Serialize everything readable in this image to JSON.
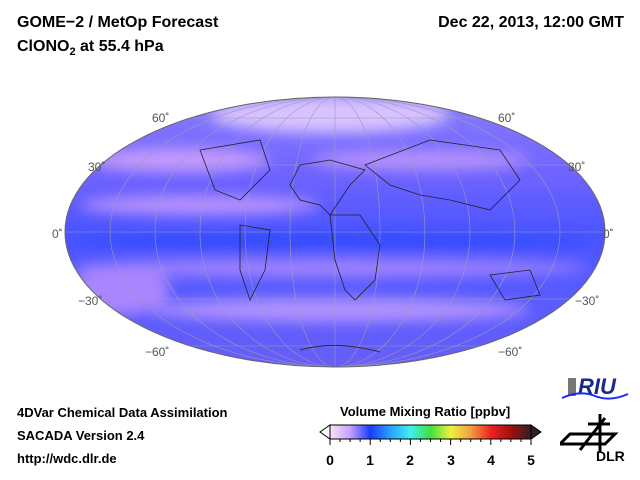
{
  "header": {
    "title": "GOME−2 / MetOp Forecast",
    "species_prefix": "ClONO",
    "species_sub": "2",
    "species_suffix": " at 55.4 hPa",
    "datetime": "Dec 22, 2013, 12:00 GMT"
  },
  "map": {
    "projection": "Mollweide",
    "lat_labels_left": [
      "60˚",
      "30˚",
      "0˚",
      "−30˚",
      "−60˚"
    ],
    "lat_labels_right": [
      "60˚",
      "30˚",
      "0˚",
      "−30˚",
      "−60˚"
    ],
    "colors": {
      "base": "#4a55ff",
      "band": "#e6b3ff",
      "border": "#666666"
    }
  },
  "footer": {
    "line1": "4DVar Chemical Data Assimilation",
    "line2": "SACADA Version 2.4",
    "line3": "http://wdc.dlr.de"
  },
  "colorbar": {
    "label": "Volume Mixing Ratio [ppbv]",
    "ticks": [
      "0",
      "1",
      "2",
      "3",
      "4",
      "5"
    ],
    "range": [
      0,
      5
    ],
    "colors": [
      "#f5e6ef",
      "#c8a0ff",
      "#1a3cff",
      "#2aa0ff",
      "#40f0f0",
      "#40e040",
      "#f0f040",
      "#f0a040",
      "#f02020",
      "#a01010",
      "#302020"
    ]
  },
  "logos": {
    "riu": "RIU",
    "dlr": "DLR"
  }
}
